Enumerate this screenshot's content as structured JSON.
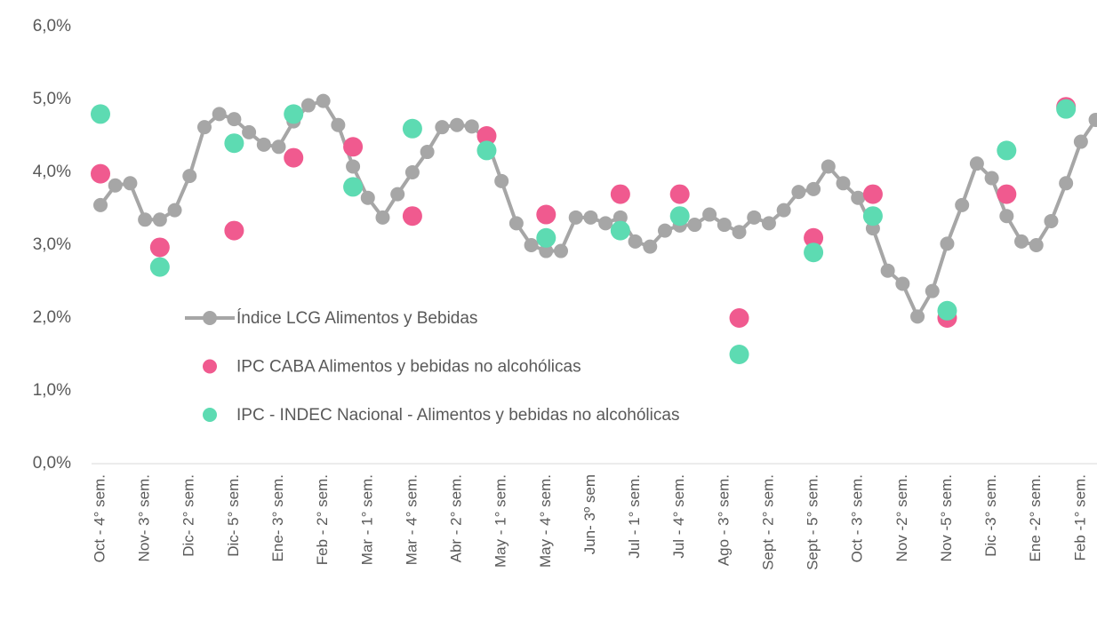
{
  "chart_data": {
    "type": "line",
    "categories": [
      "Oct - 4° sem.",
      null,
      null,
      "Nov- 3° sem.",
      null,
      null,
      "Dic- 2° sem.",
      null,
      null,
      "Dic- 5° sem.",
      null,
      null,
      "Ene- 3° sem.",
      null,
      null,
      "Feb - 2° sem.",
      null,
      null,
      "Mar - 1° sem.",
      null,
      null,
      "Mar - 4° sem.",
      null,
      null,
      "Abr - 2° sem.",
      null,
      null,
      "May - 1° sem.",
      null,
      null,
      "May - 4° sem.",
      null,
      null,
      "Jun- 3º sem",
      null,
      null,
      "Jul - 1° sem.",
      null,
      null,
      "Jul - 4° sem.",
      null,
      null,
      "Ago - 3° sem.",
      null,
      null,
      "Sept - 2° sem.",
      null,
      null,
      "Sept - 5° sem.",
      null,
      null,
      "Oct - 3° sem.",
      null,
      null,
      "Nov -2° sem.",
      null,
      null,
      "Nov -5° sem.",
      null,
      null,
      "Dic -3° sem.",
      null,
      null,
      "Ene -2° sem.",
      null,
      null,
      "Feb -1° sem.",
      null
    ],
    "series": [
      {
        "name": "Índice LCG Alimentos y Bebidas",
        "color": "#a6a6a6",
        "type": "line",
        "values": [
          3.55,
          3.82,
          3.85,
          3.35,
          3.35,
          3.48,
          3.95,
          4.62,
          4.8,
          4.73,
          4.55,
          4.38,
          4.35,
          4.7,
          4.92,
          4.98,
          4.65,
          4.08,
          3.65,
          3.38,
          3.7,
          4.0,
          4.28,
          4.62,
          4.65,
          4.63,
          4.45,
          3.88,
          3.3,
          3.0,
          2.92,
          2.92,
          3.38,
          3.38,
          3.3,
          3.38,
          3.05,
          2.98,
          3.2,
          3.27,
          3.28,
          3.42,
          3.28,
          3.18,
          3.38,
          3.3,
          3.48,
          3.73,
          3.77,
          4.08,
          3.85,
          3.65,
          3.23,
          2.65,
          2.47,
          2.02,
          2.37,
          3.02,
          3.55,
          4.12,
          3.92,
          3.4,
          3.05,
          3.0,
          3.33,
          3.85,
          4.42,
          4.72
        ]
      },
      {
        "name": "IPC CABA Alimentos y bebidas no alcohólicas",
        "color": "#f05a8f",
        "type": "scatter",
        "values": [
          3.98,
          null,
          null,
          null,
          2.97,
          null,
          null,
          null,
          null,
          3.2,
          null,
          null,
          null,
          4.2,
          null,
          null,
          null,
          4.35,
          null,
          null,
          null,
          3.4,
          null,
          null,
          null,
          null,
          4.5,
          null,
          null,
          null,
          3.42,
          null,
          null,
          null,
          null,
          3.7,
          null,
          null,
          null,
          3.7,
          null,
          null,
          null,
          2.0,
          null,
          null,
          null,
          null,
          3.1,
          null,
          null,
          null,
          3.7,
          null,
          null,
          null,
          null,
          2.0,
          null,
          null,
          null,
          3.7,
          null,
          null,
          null,
          4.9,
          null,
          null
        ]
      },
      {
        "name": "IPC - INDEC Nacional - Alimentos y bebidas no alcohólicas",
        "color": "#5ddbb2",
        "type": "scatter",
        "values": [
          4.8,
          null,
          null,
          null,
          2.7,
          null,
          null,
          null,
          null,
          4.4,
          null,
          null,
          null,
          4.8,
          null,
          null,
          null,
          3.8,
          null,
          null,
          null,
          4.6,
          null,
          null,
          null,
          null,
          4.3,
          null,
          null,
          null,
          3.1,
          null,
          null,
          null,
          null,
          3.2,
          null,
          null,
          null,
          3.4,
          null,
          null,
          null,
          1.5,
          null,
          null,
          null,
          null,
          2.9,
          null,
          null,
          null,
          3.4,
          null,
          null,
          null,
          null,
          2.1,
          null,
          null,
          null,
          4.3,
          null,
          null,
          null,
          4.87,
          null,
          null
        ]
      }
    ],
    "ylim": [
      0,
      6
    ],
    "yticks": [
      {
        "value": 0,
        "label": "0,0%"
      },
      {
        "value": 1,
        "label": "1,0%"
      },
      {
        "value": 2,
        "label": "2,0%"
      },
      {
        "value": 3,
        "label": "3,0%"
      },
      {
        "value": 4,
        "label": "4,0%"
      },
      {
        "value": 5,
        "label": "5,0%"
      },
      {
        "value": 6,
        "label": "6,0%"
      }
    ],
    "grid": false,
    "legend": "center left"
  }
}
